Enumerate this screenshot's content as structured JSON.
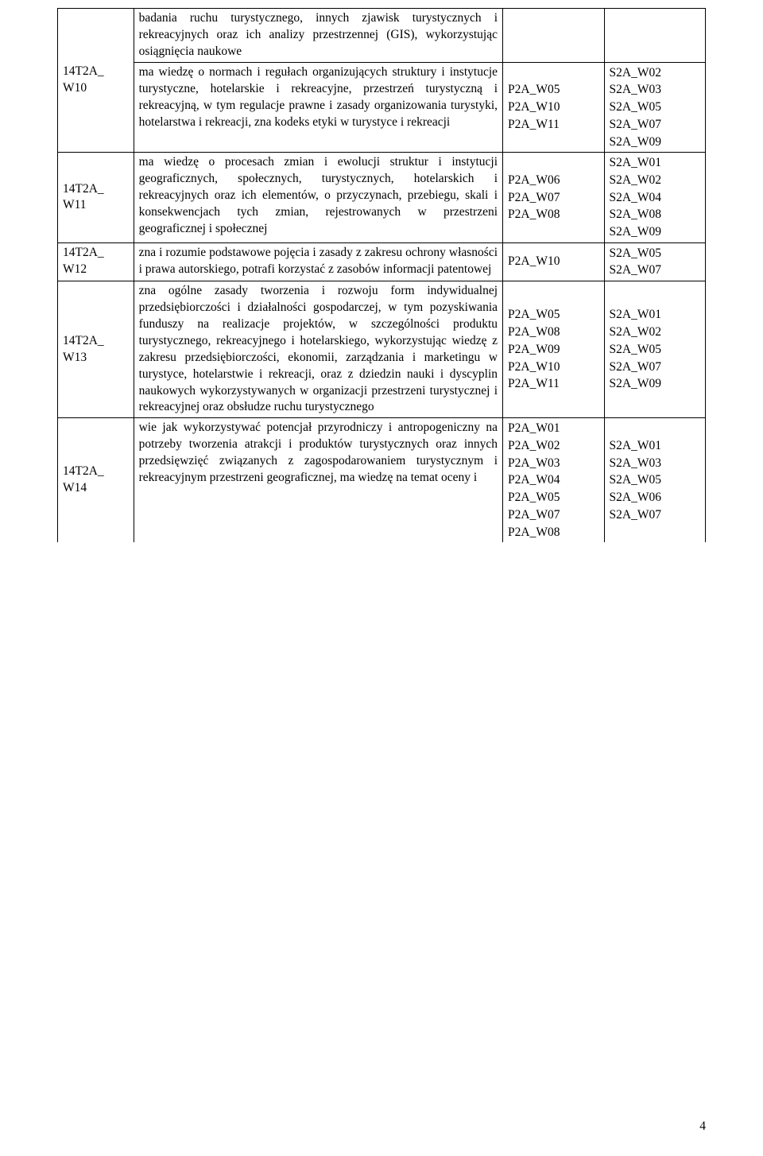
{
  "rows": [
    {
      "id": "14T2A_\nW10",
      "desc_top": "badania ruchu turystycznego, innych zjawisk turystycznych i rekreacyjnych oraz ich analizy przestrzennej (GIS), wykorzystując osiągnięcia naukowe",
      "desc_bottom": "ma wiedzę o normach i regułach organizujących struktury i instytucje turystyczne, hotelarskie i rekreacyjne, przestrzeń turystyczną i rekreacyjną, w tym regulacje prawne i zasady organizowania turystyki, hotelarstwa i rekreacji, zna kodeks etyki w turystyce i rekreacji",
      "p2a": "P2A_W05\nP2A_W10\nP2A_W11",
      "s2a": "S2A_W02\nS2A_W03\nS2A_W05\nS2A_W07\nS2A_W09"
    },
    {
      "id": "14T2A_\nW11",
      "desc": "ma wiedzę o procesach zmian i ewolucji struktur i instytucji geograficznych, społecznych, turystycznych, hotelarskich i rekreacyjnych oraz ich elementów, o przyczynach, przebiegu, skali i konsekwencjach tych zmian, rejestrowanych w przestrzeni geograficznej i społecznej",
      "p2a": "P2A_W06\nP2A_W07\nP2A_W08",
      "s2a": "S2A_W01\nS2A_W02\nS2A_W04\nS2A_W08\nS2A_W09"
    },
    {
      "id": "14T2A_\nW12",
      "desc": "zna i rozumie podstawowe pojęcia i zasady z zakresu ochrony własności i prawa autorskiego, potrafi korzystać z zasobów informacji patentowej",
      "p2a": "P2A_W10",
      "s2a": "S2A_W05\nS2A_W07"
    },
    {
      "id": "14T2A_\nW13",
      "desc": "zna ogólne zasady tworzenia i rozwoju form indywidualnej przedsiębiorczości i działalności gospodarczej, w tym pozyskiwania funduszy na realizacje projektów, w szczególności produktu turystycznego, rekreacyjnego i hotelarskiego, wykorzystując wiedzę z zakresu przedsiębiorczości, ekonomii, zarządzania i marketingu w turystyce, hotelarstwie i rekreacji, oraz z dziedzin nauki i dyscyplin naukowych wykorzystywanych w organizacji przestrzeni turystycznej i rekreacyjnej oraz obsłudze ruchu turystycznego",
      "p2a": "P2A_W05\nP2A_W08\nP2A_W09\nP2A_W10\nP2A_W11",
      "s2a": "S2A_W01\nS2A_W02\nS2A_W05\nS2A_W07\nS2A_W09"
    },
    {
      "id": "14T2A_\nW14",
      "desc": "wie jak wykorzystywać potencjał przyrodniczy i antropogeniczny na potrzeby tworzenia atrakcji i produktów turystycznych oraz innych przedsięwzięć związanych z zagospodarowaniem turystycznym i rekreacyjnym przestrzeni geograficznej, ma wiedzę na temat oceny i",
      "p2a": "P2A_W01\nP2A_W02\nP2A_W03\nP2A_W04\nP2A_W05\nP2A_W07\nP2A_W08",
      "s2a": "S2A_W01\nS2A_W03\nS2A_W05\nS2A_W06\nS2A_W07"
    }
  ],
  "page_number": "4"
}
